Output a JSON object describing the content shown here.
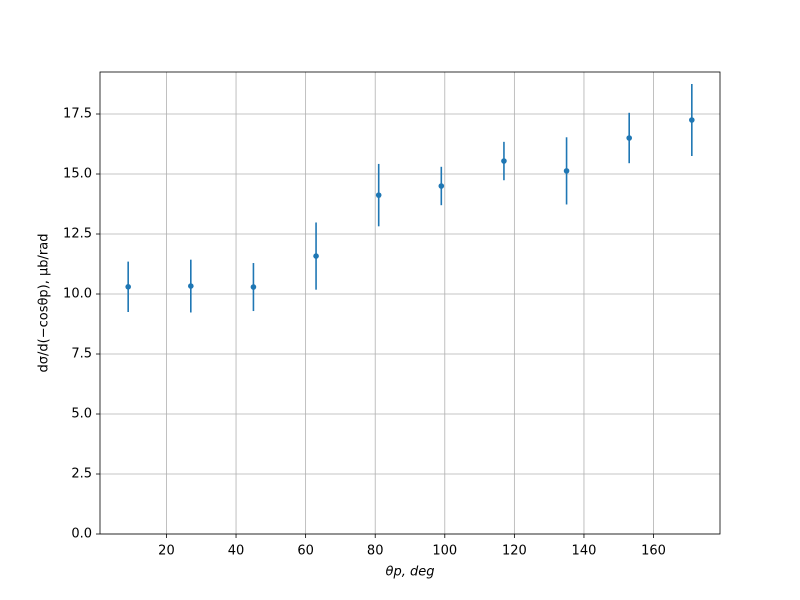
{
  "chart_data": {
    "type": "errorbar",
    "xlabel": "θp, deg",
    "ylabel": "dσ/d(−cosθp), μb/rad",
    "x": [
      9,
      27,
      45,
      63,
      81,
      99,
      117,
      135,
      153,
      171
    ],
    "series": [
      {
        "color": "#1f77b4",
        "values": [
          10.3,
          10.33,
          10.29,
          11.58,
          14.12,
          14.5,
          15.54,
          15.13,
          16.5,
          17.25
        ],
        "errors": [
          1.05,
          1.1,
          1.0,
          1.4,
          1.3,
          0.8,
          0.8,
          1.4,
          1.05,
          1.5
        ]
      }
    ],
    "xlim": [
      0.9,
      179.1
    ],
    "ylim": [
      0,
      19.25
    ],
    "xticks": [
      20,
      40,
      60,
      80,
      100,
      120,
      140,
      160
    ],
    "yticks": [
      {
        "value": 0,
        "label": "0.0"
      },
      2.5,
      {
        "value": 5,
        "label": "5.0"
      },
      7.5,
      {
        "value": 10,
        "label": "10.0"
      },
      12.5,
      {
        "value": 15,
        "label": "15.0"
      },
      17.5
    ],
    "grid": true
  }
}
